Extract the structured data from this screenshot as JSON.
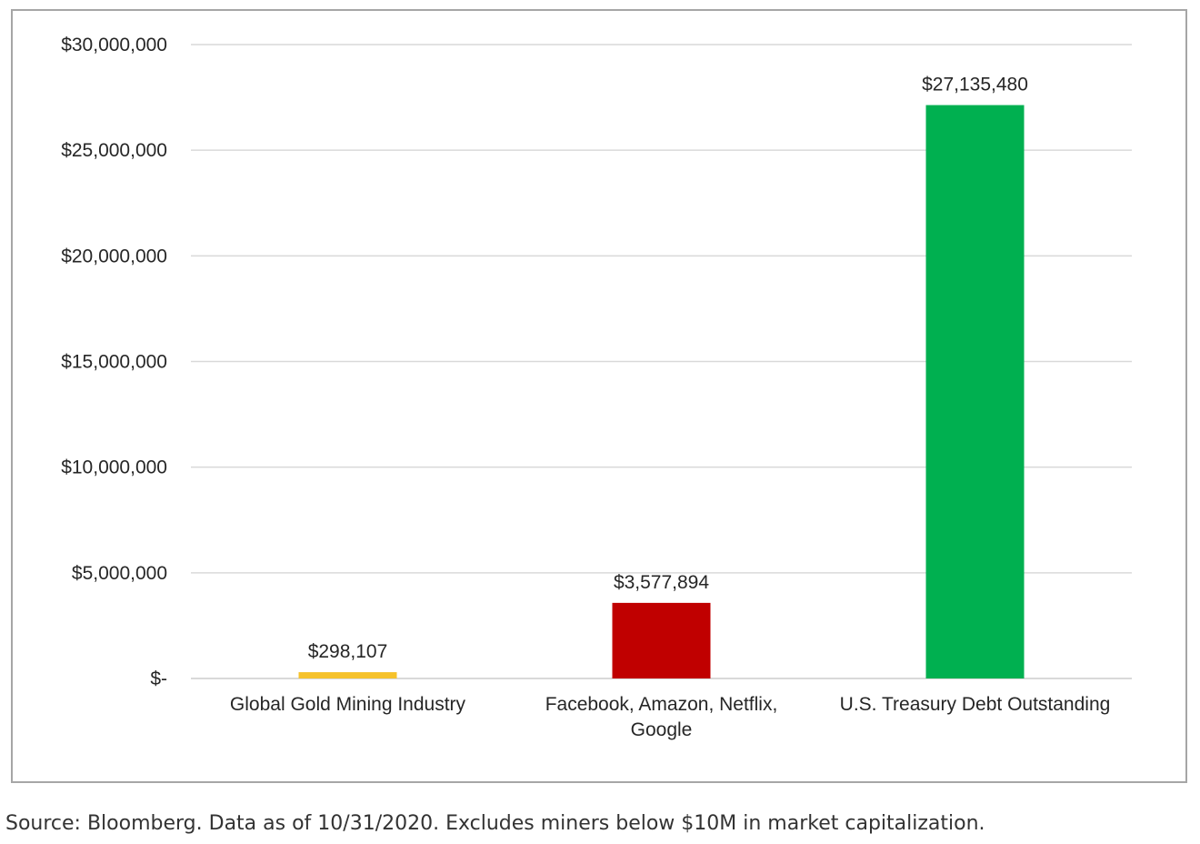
{
  "chart_data": {
    "type": "bar",
    "categories": [
      [
        "Global Gold Mining Industry"
      ],
      [
        "Facebook, Amazon, Netflix,",
        "Google"
      ],
      [
        "U.S. Treasury Debt Outstanding"
      ]
    ],
    "values": [
      298107,
      3577894,
      27135480
    ],
    "data_labels": [
      "$298,107",
      "$3,577,894",
      "$27,135,480"
    ],
    "bar_colors": [
      "#f6c22b",
      "#c00000",
      "#00b050"
    ],
    "ylim": [
      0,
      30000000
    ],
    "yticks": [
      {
        "value": 0,
        "label": "$-"
      },
      {
        "value": 5000000,
        "label": "$5,000,000"
      },
      {
        "value": 10000000,
        "label": "$10,000,000"
      },
      {
        "value": 15000000,
        "label": "$15,000,000"
      },
      {
        "value": 20000000,
        "label": "$20,000,000"
      },
      {
        "value": 25000000,
        "label": "$25,000,000"
      },
      {
        "value": 30000000,
        "label": "$30,000,000"
      }
    ],
    "grid": true,
    "gridline_color": "#d9d9d9",
    "axis_line_color": "#d9d9d9"
  },
  "source_note": "Source: Bloomberg. Data as of 10/31/2020. Excludes miners below $10M in market capitalization."
}
